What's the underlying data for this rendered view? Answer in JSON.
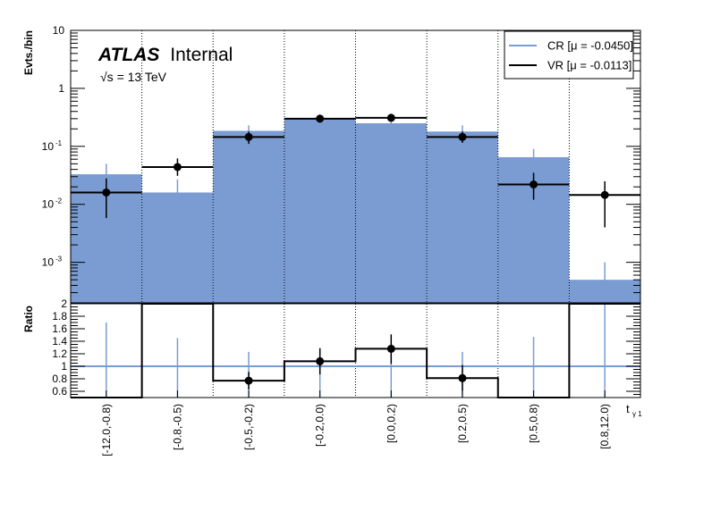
{
  "chart_data": [
    {
      "type": "histogram",
      "panel": "main",
      "ylabel": "Evts./bin",
      "yscale": "log",
      "ylim": [
        0.0002,
        10
      ],
      "y_tick_labels": [
        "10",
        "1",
        "10",
        "10",
        "10",
        "10"
      ],
      "y_tick_exponents": [
        "",
        "",
        "-1",
        "-2",
        "-3",
        ""
      ],
      "y_tick_values": [
        10,
        1,
        0.1,
        0.01,
        0.001
      ],
      "categories": [
        "[-12.0,-0.8)",
        "[-0.8,-0.5)",
        "[-0.5,-0.2)",
        "[-0.2,0.0)",
        "[0.0,0.2)",
        "[0.2,0.5)",
        "[0.5,0.8)",
        "[0.8,12.0)"
      ],
      "xlabel": "t",
      "xlabel_sub": "γ 1",
      "atlas_label": "ATLAS",
      "atlas_status": "Internal",
      "energy_label": "√s = 13 TeV",
      "series": [
        {
          "name": "CR [μ = -0.0450]",
          "style": "filled",
          "color": "#7a9cd3",
          "values": [
            0.033,
            0.016,
            0.185,
            0.3,
            0.25,
            0.18,
            0.065,
            0.0005
          ],
          "err_low": [
            0.017,
            0.007,
            0.12,
            0.24,
            0.19,
            0.12,
            0.035,
            0.0003
          ],
          "err_high": [
            0.05,
            0.027,
            0.23,
            0.36,
            0.31,
            0.23,
            0.09,
            0.001
          ]
        },
        {
          "name": "VR [μ = -0.0113]",
          "style": "points",
          "color": "#000000",
          "values": [
            0.016,
            0.044,
            0.145,
            0.3,
            0.31,
            0.145,
            0.022,
            0.0145
          ],
          "err_low": [
            0.0058,
            0.031,
            0.11,
            0.27,
            0.28,
            0.115,
            0.012,
            0.004
          ],
          "err_high": [
            0.028,
            0.062,
            0.18,
            0.33,
            0.34,
            0.18,
            0.035,
            0.025
          ]
        }
      ],
      "legend_position": "top-right"
    },
    {
      "type": "histogram",
      "panel": "ratio",
      "ylabel": "Ratio",
      "ylim": [
        0.5,
        2.0
      ],
      "y_tick_labels": [
        "2",
        "1.8",
        "1.6",
        "1.4",
        "1.2",
        "1",
        "0.8",
        "0.6"
      ],
      "y_tick_values": [
        2.0,
        1.8,
        1.6,
        1.4,
        1.2,
        1.0,
        0.8,
        0.6
      ],
      "reference_line": 1.0,
      "cr_err_low": [
        0.5,
        0.5,
        0.5,
        0.5,
        0.5,
        0.5,
        0.5,
        0.5
      ],
      "cr_err_high": [
        1.7,
        1.45,
        1.23,
        1.22,
        1.22,
        1.23,
        1.47,
        2.0
      ],
      "values": [
        0.5,
        2.0,
        0.77,
        1.08,
        1.28,
        0.81,
        0.5,
        2.0
      ],
      "err_low": [
        null,
        null,
        0.63,
        0.87,
        1.04,
        0.61,
        null,
        null
      ],
      "err_high": [
        null,
        null,
        0.91,
        1.29,
        1.51,
        1.02,
        null,
        null
      ],
      "show_point": [
        false,
        false,
        true,
        true,
        true,
        true,
        false,
        false
      ]
    }
  ]
}
